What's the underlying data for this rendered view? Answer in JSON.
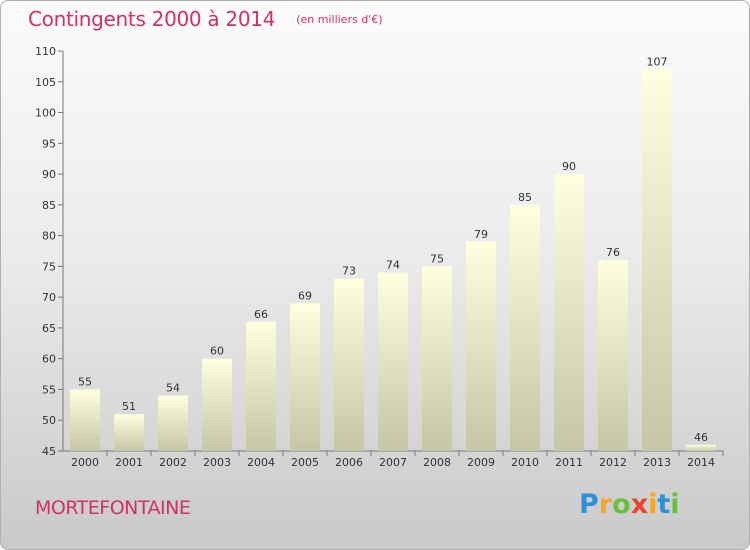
{
  "title": "Contingents 2000 à 2014",
  "subtitle": "(en milliers d'€)",
  "commune": "MORTEFONTAINE",
  "logo": {
    "letters": [
      "P",
      "r",
      "o",
      "x",
      "i",
      "t",
      "i"
    ],
    "colors": [
      "#2f8fd8",
      "#f5a623",
      "#6cbf3c",
      "#e8452c",
      "#f5a623",
      "#2f8fd8",
      "#6cbf3c"
    ]
  },
  "colors": {
    "title": "#d0306b",
    "bar_light": "#ffffe0",
    "bar_dark": "#c6c6a6"
  },
  "chart_data": {
    "type": "bar",
    "categories": [
      "2000",
      "2001",
      "2002",
      "2003",
      "2004",
      "2005",
      "2006",
      "2007",
      "2008",
      "2009",
      "2010",
      "2011",
      "2012",
      "2013",
      "2014"
    ],
    "values": [
      55,
      51,
      54,
      60,
      66,
      69,
      73,
      74,
      75,
      79,
      85,
      90,
      76,
      107,
      46
    ],
    "ylim": [
      45,
      110
    ],
    "yticks": [
      45,
      50,
      55,
      60,
      65,
      70,
      75,
      80,
      85,
      90,
      95,
      100,
      105,
      110
    ],
    "xlabel": "",
    "ylabel": "",
    "grid": false,
    "data_labels": true
  }
}
